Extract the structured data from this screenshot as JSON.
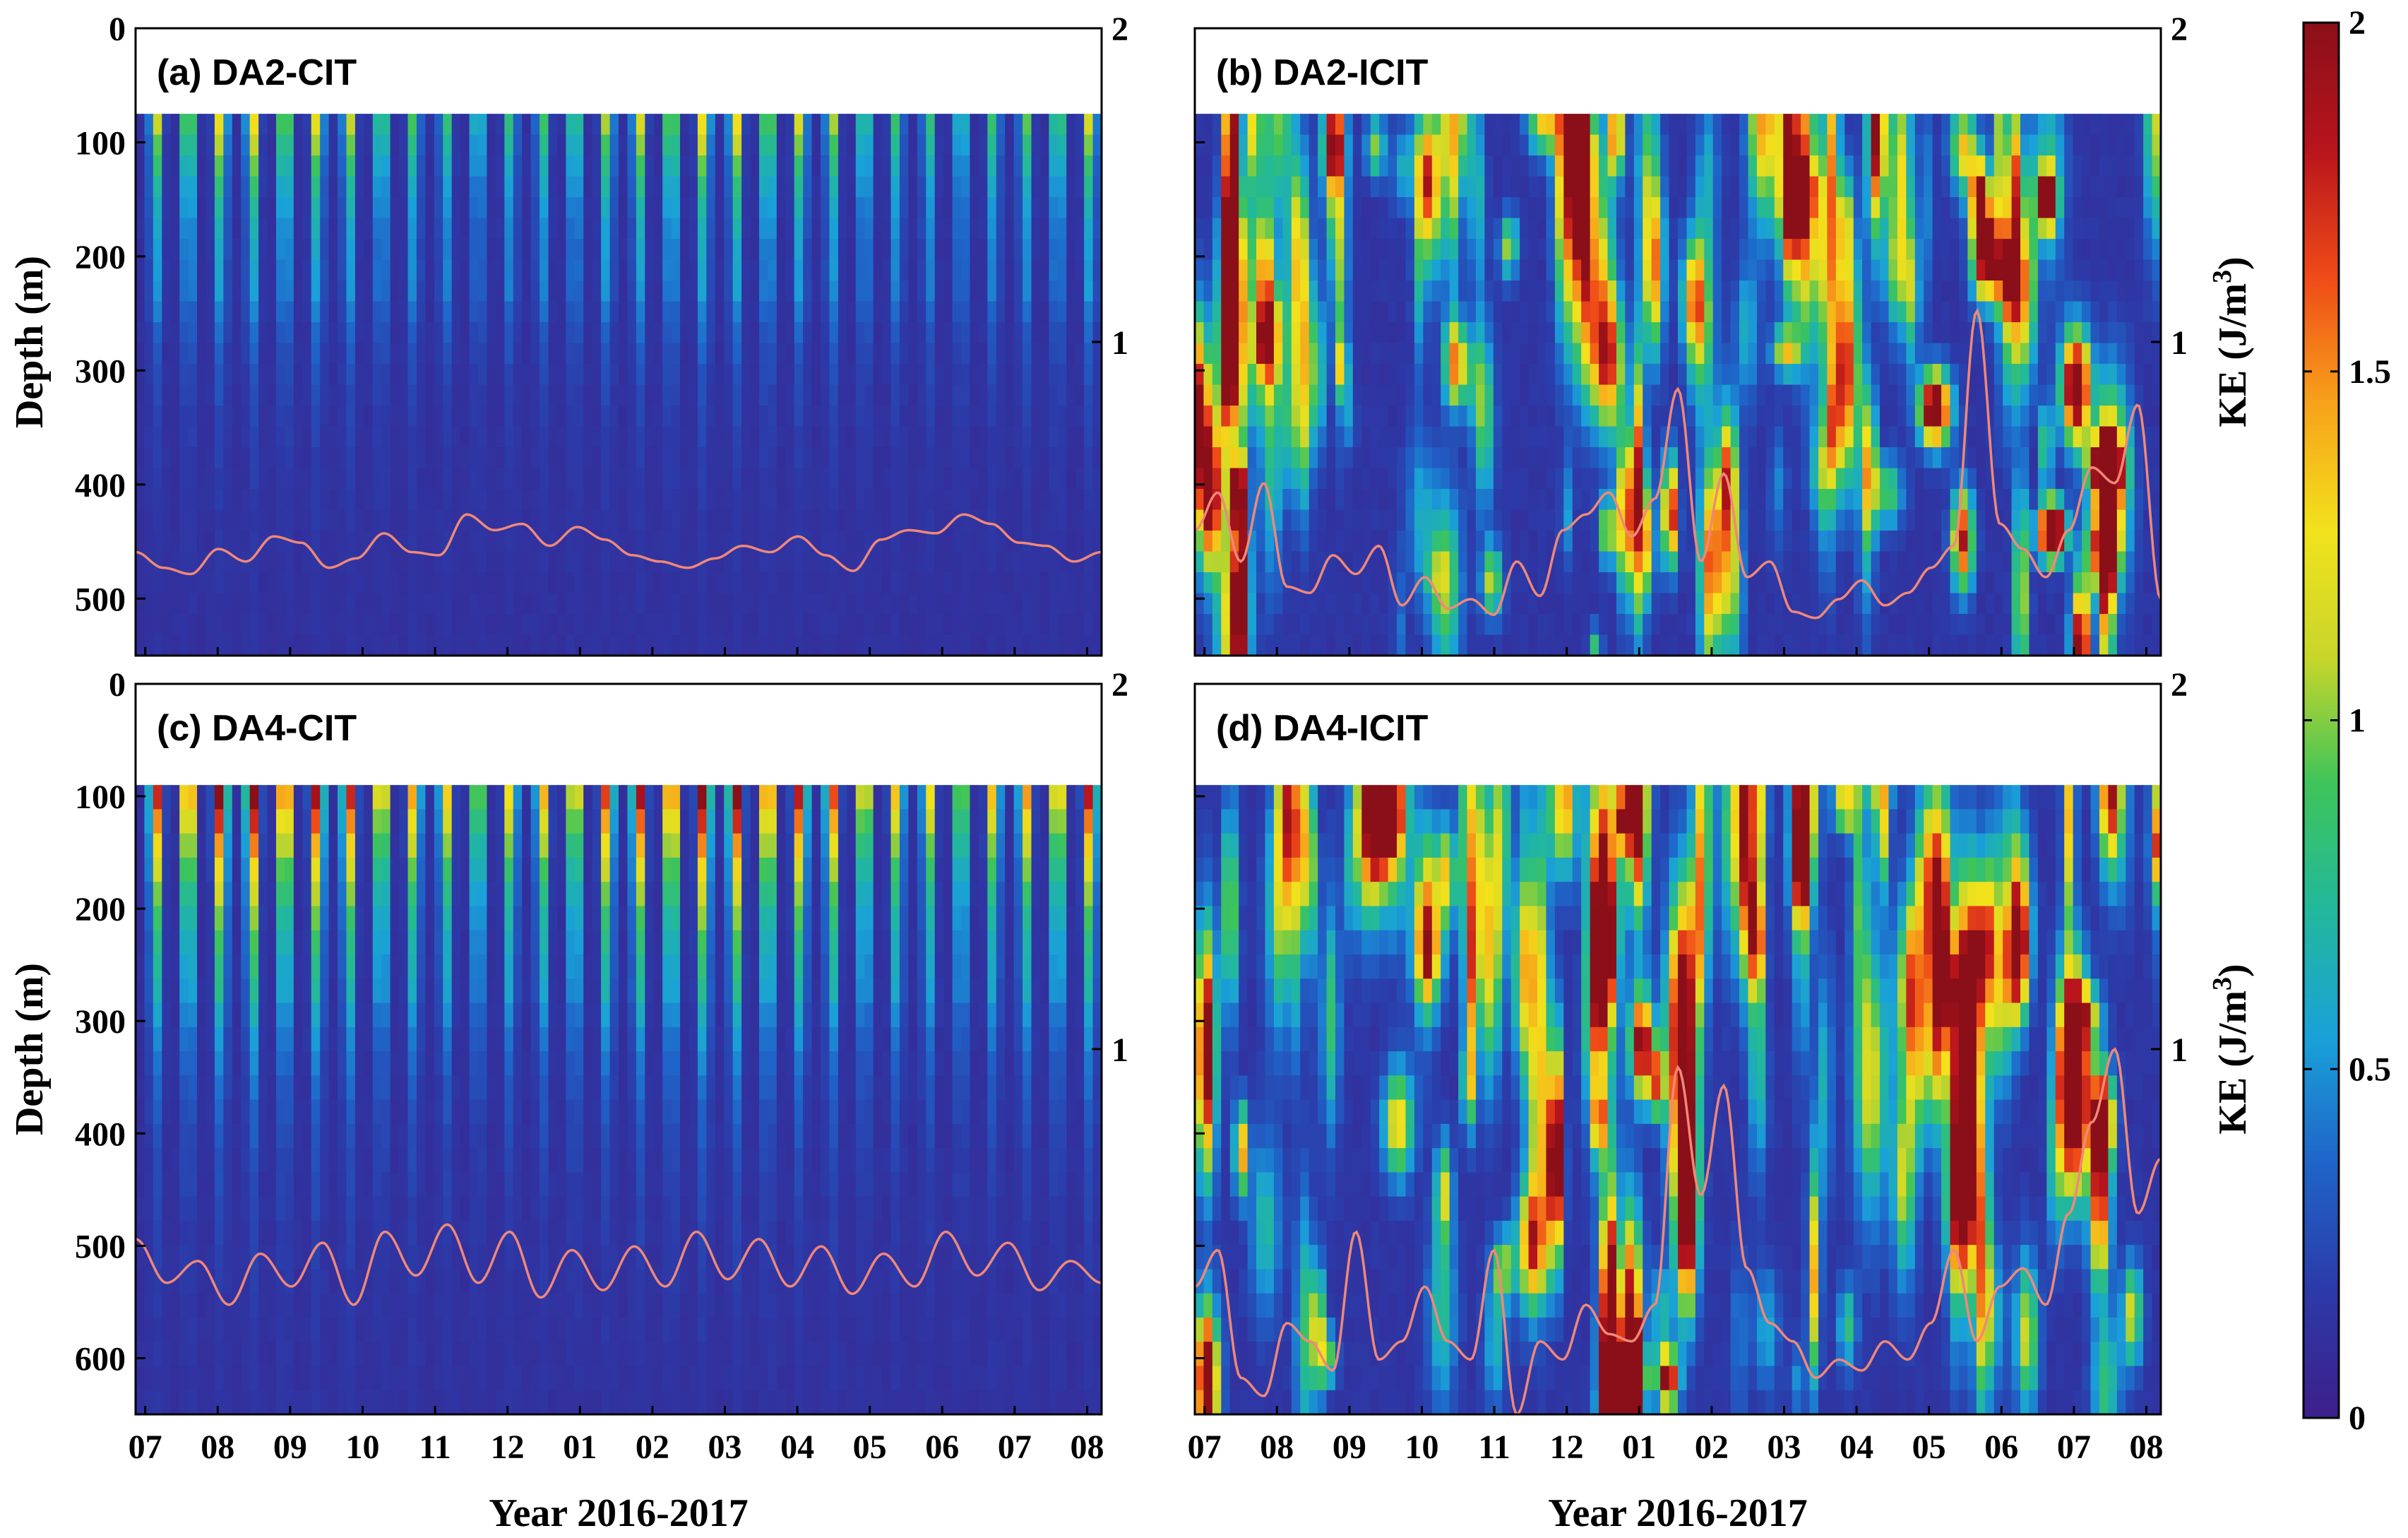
{
  "figure": {
    "x_axis_label": "Year 2016-2017",
    "left_axis_label": "Depth (m)",
    "right_axis_label_base": "KE (J/m",
    "right_axis_label_sup": "3",
    "right_axis_label_close": ")"
  },
  "colorbar": {
    "min": 0,
    "max": 2,
    "ticks": [
      "0",
      "0.5",
      "1",
      "1.5",
      "2"
    ],
    "colormap": "jet",
    "colors": [
      "#3d1f8a",
      "#2c3aa8",
      "#1f64c8",
      "#1aa1d8",
      "#22b89c",
      "#3ec45a",
      "#c8d62a",
      "#f2e21c",
      "#f7a21a",
      "#ef4a18",
      "#b8141c",
      "#8a0f18"
    ]
  },
  "chart_data": [
    {
      "id": "a",
      "type": "heatmap",
      "title": "(a) DA2-CIT",
      "xlabel": "",
      "ylabel": "Depth (m)",
      "y_left_range": [
        0,
        550
      ],
      "y_left_ticks": [
        "0",
        "100",
        "200",
        "300",
        "400",
        "500"
      ],
      "y_right_range": [
        0,
        2
      ],
      "y_right_ticks": [
        "2",
        "1"
      ],
      "data_top_depth": 75,
      "months": [
        "07",
        "08",
        "09",
        "10",
        "11",
        "12",
        "01",
        "02",
        "03",
        "04",
        "05",
        "06",
        "07",
        "08"
      ],
      "pattern": "periodic",
      "n_stripes": 30,
      "surface_ke": 1.2,
      "line_color": "#f08878",
      "line_series": [
        0.33,
        0.28,
        0.26,
        0.34,
        0.3,
        0.38,
        0.36,
        0.28,
        0.31,
        0.39,
        0.33,
        0.32,
        0.45,
        0.4,
        0.42,
        0.35,
        0.41,
        0.37,
        0.32,
        0.3,
        0.28,
        0.31,
        0.35,
        0.33,
        0.38,
        0.32,
        0.27,
        0.37,
        0.4,
        0.39,
        0.45,
        0.42,
        0.36,
        0.35,
        0.3,
        0.33
      ]
    },
    {
      "id": "b",
      "type": "heatmap",
      "title": "(b) DA2-ICIT",
      "xlabel": "Year 2016-2017",
      "ylabel": "KE (J/m3)",
      "y_left_range": [
        0,
        550
      ],
      "y_left_ticks": [
        "0",
        "100",
        "200",
        "300",
        "400",
        "500"
      ],
      "y_right_range": [
        0,
        2
      ],
      "y_right_ticks": [
        "2",
        "1"
      ],
      "data_top_depth": 75,
      "months": [
        "07",
        "08",
        "09",
        "10",
        "11",
        "12",
        "01",
        "02",
        "03",
        "04",
        "05",
        "06",
        "07",
        "08"
      ],
      "pattern": "random",
      "line_color": "#f08878",
      "line_series": [
        0.4,
        0.52,
        0.3,
        0.55,
        0.22,
        0.2,
        0.32,
        0.26,
        0.35,
        0.16,
        0.25,
        0.15,
        0.18,
        0.13,
        0.3,
        0.19,
        0.4,
        0.45,
        0.52,
        0.38,
        0.5,
        0.85,
        0.3,
        0.58,
        0.25,
        0.3,
        0.14,
        0.12,
        0.18,
        0.24,
        0.16,
        0.2,
        0.28,
        0.35,
        1.1,
        0.42,
        0.34,
        0.25,
        0.4,
        0.6,
        0.55,
        0.8,
        0.18
      ]
    },
    {
      "id": "c",
      "type": "heatmap",
      "title": "(c) DA4-CIT",
      "xlabel": "Year 2016-2017",
      "ylabel": "Depth (m)",
      "y_left_range": [
        0,
        650
      ],
      "y_left_ticks": [
        "0",
        "100",
        "200",
        "300",
        "400",
        "500",
        "600"
      ],
      "y_right_range": [
        0,
        2
      ],
      "y_right_ticks": [
        "2",
        "1"
      ],
      "data_top_depth": 90,
      "months": [
        "07",
        "08",
        "09",
        "10",
        "11",
        "12",
        "01",
        "02",
        "03",
        "04",
        "05",
        "06",
        "07",
        "08"
      ],
      "pattern": "periodic",
      "n_stripes": 30,
      "surface_ke": 2.0,
      "line_color": "#f08878",
      "line_series": [
        0.48,
        0.36,
        0.42,
        0.3,
        0.44,
        0.35,
        0.47,
        0.3,
        0.5,
        0.38,
        0.52,
        0.36,
        0.5,
        0.32,
        0.45,
        0.34,
        0.46,
        0.35,
        0.5,
        0.37,
        0.48,
        0.35,
        0.46,
        0.33,
        0.44,
        0.35,
        0.5,
        0.38,
        0.47,
        0.34,
        0.42,
        0.36
      ]
    },
    {
      "id": "d",
      "type": "heatmap",
      "title": "(d) DA4-ICIT",
      "xlabel": "Year 2016-2017",
      "ylabel": "KE (J/m3)",
      "y_left_range": [
        0,
        650
      ],
      "y_left_ticks": [
        "0",
        "100",
        "200",
        "300",
        "400",
        "500",
        "600"
      ],
      "y_right_range": [
        0,
        2
      ],
      "y_right_ticks": [
        "2",
        "1"
      ],
      "data_top_depth": 90,
      "months": [
        "07",
        "08",
        "09",
        "10",
        "11",
        "12",
        "01",
        "02",
        "03",
        "04",
        "05",
        "06",
        "07",
        "08"
      ],
      "pattern": "random",
      "line_color": "#f08878",
      "line_series": [
        0.35,
        0.45,
        0.1,
        0.05,
        0.25,
        0.2,
        0.12,
        0.5,
        0.15,
        0.2,
        0.35,
        0.2,
        0.15,
        0.45,
        0.0,
        0.2,
        0.15,
        0.3,
        0.22,
        0.2,
        0.3,
        0.95,
        0.6,
        0.9,
        0.4,
        0.25,
        0.2,
        0.1,
        0.15,
        0.12,
        0.2,
        0.15,
        0.25,
        0.45,
        0.2,
        0.35,
        0.4,
        0.3,
        0.55,
        0.8,
        1.0,
        0.55,
        0.7
      ]
    }
  ]
}
